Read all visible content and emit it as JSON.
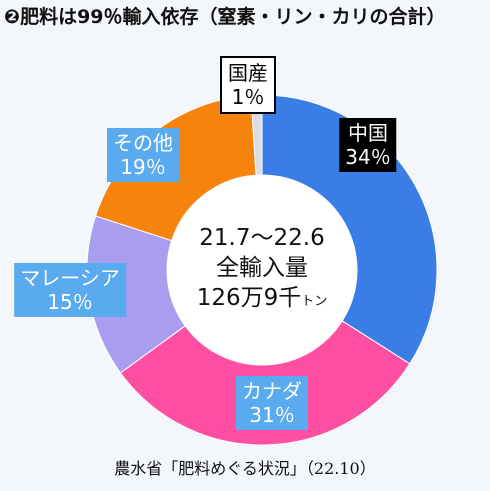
{
  "chart_data": {
    "type": "donut",
    "title": "❷肥料は99％輸入依存（窒素・リン・カリの合計）",
    "categories": [
      "中国",
      "カナダ",
      "マレーシア",
      "その他",
      "国産"
    ],
    "values": [
      34,
      31,
      15,
      19,
      1
    ],
    "value_labels": [
      "34％",
      "31％",
      "15％",
      "19％",
      "1％"
    ],
    "colors": [
      "#3a7de6",
      "#ff4fa3",
      "#a99df0",
      "#f7830f",
      "#d8dde3"
    ],
    "center_text": [
      "21.7〜22.6",
      "全輸入量",
      "126万9千"
    ],
    "center_unit": "トン",
    "source": "農水省「肥料めぐる状況」（22.10）"
  }
}
